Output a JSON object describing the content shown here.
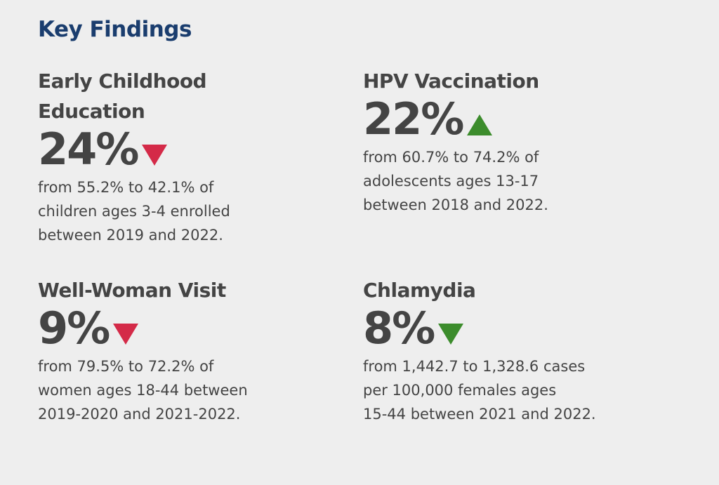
{
  "title": "Key Findings",
  "colors": {
    "title": "#1a3d6e",
    "down": "#d42a48",
    "up": "#3c8c2c",
    "text": "#444444",
    "background": "#eeeeee"
  },
  "findings": [
    {
      "heading": "Early Childhood\nEducation",
      "value": "24%",
      "direction": "down",
      "icon": "triangle-down-red-icon",
      "description": "from 55.2% to 42.1% of\nchildren ages 3-4 enrolled\nbetween 2019 and 2022."
    },
    {
      "heading": "HPV Vaccination",
      "value": "22%",
      "direction": "up",
      "icon": "triangle-up-green-icon",
      "description": "from 60.7% to 74.2% of\nadolescents ages 13-17\nbetween 2018 and 2022."
    },
    {
      "heading": "Well-Woman Visit",
      "value": "9%",
      "direction": "down",
      "icon": "triangle-down-red-icon",
      "description": "from 79.5% to 72.2% of\nwomen ages 18-44 between\n2019-2020 and 2021-2022."
    },
    {
      "heading": "Chlamydia",
      "value": "8%",
      "direction": "down",
      "icon": "triangle-down-green-icon",
      "description": "from 1,442.7 to 1,328.6 cases\nper 100,000 females ages\n15-44 between 2021 and 2022."
    }
  ]
}
